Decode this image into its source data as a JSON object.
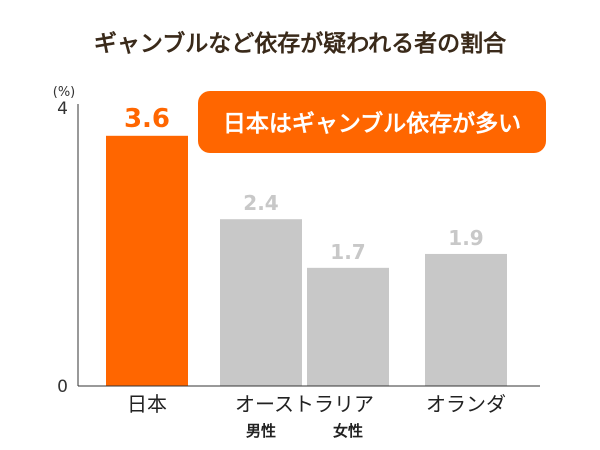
{
  "chart_data": {
    "type": "bar",
    "title": "ギャンブルなど依存が疑われる者の割合",
    "unit": "(%)",
    "ylim": [
      0,
      4
    ],
    "yticks": [
      0,
      4
    ],
    "categories": [
      "日本",
      "オーストラリア 男性",
      "オーストラリア 女性",
      "オランダ"
    ],
    "values": [
      3.6,
      2.4,
      1.7,
      1.9
    ],
    "value_labels": [
      "3.6",
      "2.4",
      "1.7",
      "1.9"
    ],
    "group_labels": [
      {
        "label": "日本",
        "bars": [
          0
        ]
      },
      {
        "label": "オーストラリア",
        "bars": [
          1,
          2
        ]
      },
      {
        "label": "オランダ",
        "bars": [
          3
        ]
      }
    ],
    "sub_labels": [
      {
        "bar": 1,
        "label": "男性"
      },
      {
        "bar": 2,
        "label": "女性"
      }
    ],
    "callout": "日本はギャンブル依存が多い",
    "colors": {
      "highlight": "#ff6600",
      "muted": "#c8c8c8",
      "title": "#3a2a1a",
      "axis": "#333333"
    },
    "highlight_index": 0
  }
}
